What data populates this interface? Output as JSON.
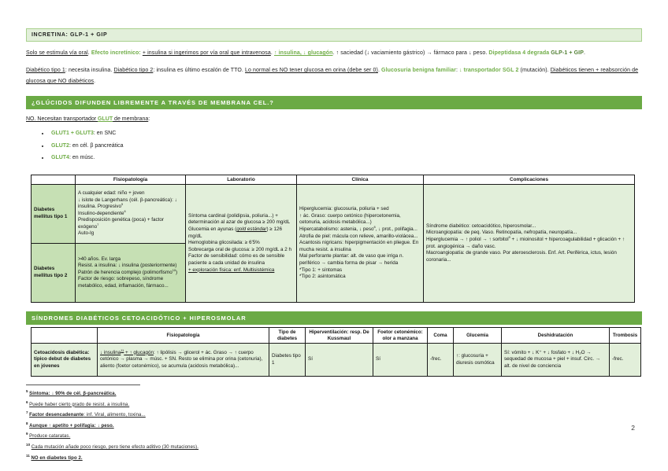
{
  "colors": {
    "accent_green": "#70AD47",
    "dark_green": "#538135",
    "banner_green": "#6BAA45",
    "cell_light": "#E2EFDA",
    "cell_medium": "#C6E0B4"
  },
  "title": "INCRETINA: GLP-1 + GIP",
  "intro": {
    "runs": [
      {
        "t": "Solo se estimula vía oral",
        "s": "u"
      },
      {
        "t": ". ",
        "s": ""
      },
      {
        "t": "Efecto incretínico:",
        "s": "g"
      },
      {
        "t": " ",
        "s": ""
      },
      {
        "t": "+ insulina si ingerimos por vía oral que intravenosa",
        "s": "u"
      },
      {
        "t": ". ",
        "s": ""
      },
      {
        "t": "↑ insulina, ↓ glucagón",
        "s": "gu"
      },
      {
        "t": ". ↑ saciedad (↓ vaciamiento gástrico) → fármaco para ↓ peso. ",
        "s": ""
      },
      {
        "t": "Dipeptidasa 4 degrada ",
        "s": "g"
      },
      {
        "t": "GLP-1 + GIP",
        "s": "gd"
      },
      {
        "t": ".",
        "s": ""
      }
    ]
  },
  "diabetico": {
    "runs": [
      {
        "t": "Diabético tipo 1",
        "s": "u"
      },
      {
        "t": ": necesita insulina. ",
        "s": ""
      },
      {
        "t": "Diabético tipo 2",
        "s": "u"
      },
      {
        "t": ": insulina es último escalón de TTO. ",
        "s": ""
      },
      {
        "t": "Lo normal es NO tener glucosa en orina (debe ser 0)",
        "s": "u"
      },
      {
        "t": ". ",
        "s": ""
      },
      {
        "t": "Glucosuria benigna familiar",
        "s": "g"
      },
      {
        "t": ": ",
        "s": ""
      },
      {
        "t": "↓ transportador SGL 2",
        "s": "g"
      },
      {
        "t": " (mutación). ",
        "s": ""
      },
      {
        "t": "Diabéticos tienen + reabsorción de glucosa que NO diabéticos",
        "s": "u"
      },
      {
        "t": ".",
        "s": ""
      }
    ]
  },
  "glut_section": {
    "banner": "¿GLÚCIDOS DIFUNDEN LIBREMENTE A TRAVÉS DE MEMBRANA CEL.?",
    "lead": {
      "runs": [
        {
          "t": "NO. Necesitan transportador ",
          "s": "u"
        },
        {
          "t": "GLUT",
          "s": "gu"
        },
        {
          "t": " de membrana",
          "s": "u"
        },
        {
          "t": ":",
          "s": ""
        }
      ]
    },
    "bullets": [
      {
        "runs": [
          {
            "t": "GLUT1 + GLUT3",
            "s": "g"
          },
          {
            "t": ": en SNC",
            "s": ""
          }
        ]
      },
      {
        "runs": [
          {
            "t": "GLUT2",
            "s": "g"
          },
          {
            "t": ": en cél. β pancreática",
            "s": ""
          }
        ]
      },
      {
        "runs": [
          {
            "t": "GLUT4",
            "s": "g"
          },
          {
            "t": ": en músc.",
            "s": ""
          }
        ]
      }
    ]
  },
  "table1": {
    "headers": [
      "",
      "Fisiopatología",
      "Laboratorio",
      "Clínica",
      "Complicaciones"
    ],
    "rows": {
      "tipo1_label": "Diabetes mellitus tipo 1",
      "tipo2_label": "Diabetes mellitus tipo 2",
      "fisio_tipo1": {
        "runs": [
          {
            "t": "A cualquier edad: niño + joven\n↓ islote de Langerhans (cél. β-pancreática): ↓ insulina. Progresivo",
            "s": ""
          },
          {
            "t": "5",
            "s": "sup"
          },
          {
            "t": "\nInsulino-dependiente",
            "s": ""
          },
          {
            "t": "6",
            "s": "sup"
          },
          {
            "t": "\nPredisposición genética (poca) + factor exógeno",
            "s": ""
          },
          {
            "t": "7",
            "s": "sup"
          },
          {
            "t": "\nAuto-Ig",
            "s": ""
          }
        ]
      },
      "fisio_tipo2": {
        "runs": [
          {
            "t": ">40 años. Ev. larga\nResist. a insulina: ↓ insulina (posteriormente)\nPatrón de herencia complejo (polimorfismo",
            "s": ""
          },
          {
            "t": "10",
            "s": "sup"
          },
          {
            "t": ")\nFactor de riesgo: sobrepeso, síndrome metabólico, edad, inflamación, fármaco...",
            "s": ""
          }
        ]
      },
      "laboratorio": {
        "runs": [
          {
            "t": "Síntoma cardinal (polidipsia, poliuria...) + determinación al azar de glucosa ≥ 200 mg/dL\nGlucemia en ayunas (",
            "s": ""
          },
          {
            "t": "gold estándar",
            "s": "it u"
          },
          {
            "t": ") ≥ 126 mg/dL\nHemoglobina glicosilada: ≥ 6'5%\nSobrecarga oral de glucosa: ≥ 200 mg/dL a 2 h\nFactor de sensibilidad: cómo es de sensible paciente a cada unidad de insulina\n",
            "s": ""
          },
          {
            "t": "+ exploración física: enf. Multisistémica",
            "s": "u"
          }
        ]
      },
      "clinica": {
        "runs": [
          {
            "t": "Hiperglucemia: glucosuria, poliuria + sed\n↑ ác. Graso: cuerpo cetónico (hipercetonemia, cetonuria, acidosis metabólica...)\nHipercatabolismo: astenia, ↓ peso",
            "s": ""
          },
          {
            "t": "8",
            "s": "sup"
          },
          {
            "t": ", ↓ prot., polifagia...\nAtrofia de piel: mácula con relieve, amarillo-violácea...\nAcantosis nigricans: hiperpigmentación en pliegue. En mucha resist. a insulina\nMal perforante plantar: alt. de vaso que irriga n. periférico → cambia forma de pisar → herida\n*Tipo 1: + síntomas\n*Tipo 2: asintomática",
            "s": ""
          }
        ]
      },
      "complicaciones": {
        "runs": [
          {
            "t": "Síndrome diabético: cetoacidótico, hiperosmolar...\nMicroangiopatía: de peq. Vaso. Retinopatía, nefropatía, neuropatía...\nHiperglucemia → ↑ poliol → ↑ sorbitol",
            "s": ""
          },
          {
            "t": "9",
            "s": "sup"
          },
          {
            "t": " + ↓ mioinositol + hipercoagulabilidad + glicación + ↑ prot. angiogénica → daño vasc.\nMacroangiopatía: de grande vaso. Por ateroesclerosis. Enf. Art. Periférica, ictus, lesión coronaria...",
            "s": ""
          }
        ]
      }
    }
  },
  "sindromes_section": {
    "banner": "SÍNDROMES DIABÉTICOS CETOACIDÓTICO + HIPEROSMOLAR"
  },
  "table2": {
    "headers": [
      "",
      "Fisiopatología",
      "Tipo de diabetes",
      "Hiperventilación: resp. De Kussmaul",
      "Foetor cetonémico: olor a manzana",
      "Coma",
      "Glucemia",
      "Deshidratación",
      "Trombosis"
    ],
    "row": {
      "label": "Cetoacidosis diabética: típico debut de diabetes en jóvenes",
      "fisiopatologia": {
        "runs": [
          {
            "t": "↓ insulina",
            "s": "u"
          },
          {
            "t": "11",
            "s": "sup u"
          },
          {
            "t": " + ↑ glucagón",
            "s": "u"
          },
          {
            "t": ": ↑ lipólisis → glicerol + ác. Graso → ↑ cuerpo cetónico → plasma → músc. + SN. Resto se elimina por orina (cetonuria), aliento (foetor cetonémico), se acumula (acidosis metabólica)...",
            "s": ""
          }
        ]
      },
      "tipo_diabetes": "Diabetes tipo 1",
      "hiperventilacion": "Sí",
      "foetor": "Sí",
      "coma": "-frec.",
      "glucemia": "↑: glucosuria + diuresis osmótica",
      "deshidratacion": "Sí: vómito + ↓ K⁺ + ↓ fosfato + ↓ H₂O → sequedad de mucosa + piel + insuf. Circ. → alt. de nivel de conciencia",
      "trombosis": "-frec."
    }
  },
  "footnotes": [
    {
      "num": "5",
      "runs": [
        {
          "t": "Síntoma: ↓ 90% de cél. β-pancreática.",
          "s": "b u"
        }
      ]
    },
    {
      "num": "6",
      "runs": [
        {
          "t": "Puede haber cierto grado de resist. a insulina.",
          "s": "u"
        }
      ]
    },
    {
      "num": "7",
      "runs": [
        {
          "t": "Factor desencadenante",
          "s": "b u"
        },
        {
          "t": ": inf. Viral, alimento, toxina...",
          "s": "u"
        }
      ]
    },
    {
      "num": "8",
      "runs": [
        {
          "t": "Aunque ↑ apetito + polifagia: ↓ peso.",
          "s": "b u"
        }
      ]
    },
    {
      "num": "9",
      "runs": [
        {
          "t": "Produce cataratas.",
          "s": "u"
        }
      ]
    },
    {
      "num": "10",
      "runs": [
        {
          "t": "Cada mutación añade poco riesgo, pero tiene efecto aditivo (30 mutaciones).",
          "s": "u"
        }
      ]
    },
    {
      "num": "11",
      "runs": [
        {
          "t": "NO en diabetes tipo 2.",
          "s": "b u"
        }
      ]
    }
  ],
  "page": {
    "number": "2"
  }
}
